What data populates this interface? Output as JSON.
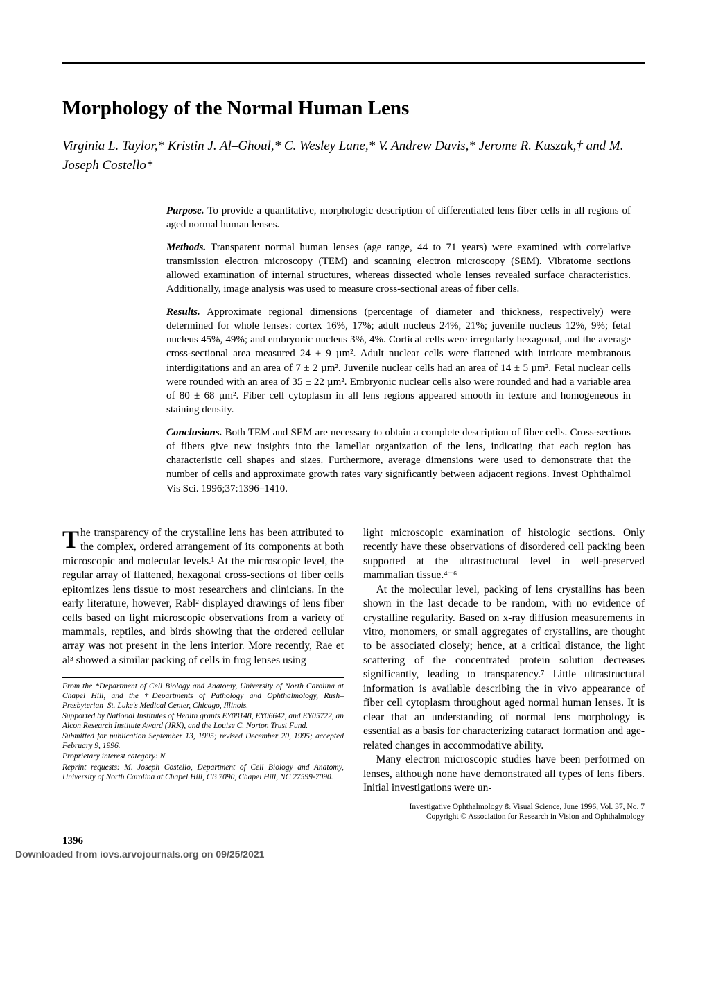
{
  "title": "Morphology of the Normal Human Lens",
  "authors": "Virginia L. Taylor,* Kristin J. Al–Ghoul,* C. Wesley Lane,* V. Andrew Davis,* Jerome R. Kuszak,† and M. Joseph Costello*",
  "abstract": {
    "purpose_label": "Purpose.",
    "purpose": " To provide a quantitative, morphologic description of differentiated lens fiber cells in all regions of aged normal human lenses.",
    "methods_label": "Methods.",
    "methods": " Transparent normal human lenses (age range, 44 to 71 years) were examined with correlative transmission electron microscopy (TEM) and scanning electron microscopy (SEM). Vibratome sections allowed examination of internal structures, whereas dissected whole lenses revealed surface characteristics. Additionally, image analysis was used to measure cross-sectional areas of fiber cells.",
    "results_label": "Results.",
    "results": " Approximate regional dimensions (percentage of diameter and thickness, respectively) were determined for whole lenses: cortex 16%, 17%; adult nucleus 24%, 21%; juvenile nucleus 12%, 9%; fetal nucleus 45%, 49%; and embryonic nucleus 3%, 4%. Cortical cells were irregularly hexagonal, and the average cross-sectional area measured 24 ± 9 µm². Adult nuclear cells were flattened with intricate membranous interdigitations and an area of 7 ± 2 µm². Juvenile nuclear cells had an area of 14 ± 5 µm². Fetal nuclear cells were rounded with an area of 35 ± 22 µm². Embryonic nuclear cells also were rounded and had a variable area of 80 ± 68 µm². Fiber cell cytoplasm in all lens regions appeared smooth in texture and homogeneous in staining density.",
    "conclusions_label": "Conclusions.",
    "conclusions": " Both TEM and SEM are necessary to obtain a complete description of fiber cells. Cross-sections of fibers give new insights into the lamellar organization of the lens, indicating that each region has characteristic cell shapes and sizes. Furthermore, average dimensions were used to demonstrate that the number of cells and approximate growth rates vary significantly between adjacent regions. Invest Ophthalmol Vis Sci. 1996;37:1396–1410."
  },
  "body": {
    "col1_p1_drop": "T",
    "col1_p1": "he transparency of the crystalline lens has been attributed to the complex, ordered arrangement of its components at both microscopic and molecular levels.¹ At the microscopic level, the regular array of flattened, hexagonal cross-sections of fiber cells epitomizes lens tissue to most researchers and clinicians. In the early literature, however, Rabl² displayed drawings of lens fiber cells based on light microscopic observations from a variety of mammals, reptiles, and birds showing that the ordered cellular array was not present in the lens interior. More recently, Rae et al³ showed a similar packing of cells in frog lenses using",
    "col2_p1": "light microscopic examination of histologic sections. Only recently have these observations of disordered cell packing been supported at the ultrastructural level in well-preserved mammalian tissue.⁴⁻⁶",
    "col2_p2": "At the molecular level, packing of lens crystallins has been shown in the last decade to be random, with no evidence of crystalline regularity. Based on x-ray diffusion measurements in vitro, monomers, or small aggregates of crystallins, are thought to be associated closely; hence, at a critical distance, the light scattering of the concentrated protein solution decreases significantly, leading to transparency.⁷ Little ultrastructural information is available describing the in vivo appearance of fiber cell cytoplasm throughout aged normal human lenses. It is clear that an understanding of normal lens morphology is essential as a basis for characterizing cataract formation and age-related changes in accommodative ability.",
    "col2_p3": "Many electron microscopic studies have been performed on lenses, although none have demonstrated all types of lens fibers. Initial investigations were un-"
  },
  "footnotes": {
    "f1": "From the *Department of Cell Biology and Anatomy, University of North Carolina at Chapel Hill, and the †Departments of Pathology and Ophthalmology, Rush–Presbyterian–St. Luke's Medical Center, Chicago, Illinois.",
    "f2": "Supported by National Institutes of Health grants EY08148, EY06642, and EY05722, an Alcon Research Institute Award (JRK), and the Louise C. Norton Trust Fund.",
    "f3": "Submitted for publication September 13, 1995; revised December 20, 1995; accepted February 9, 1996.",
    "f4": "Proprietary interest category: N.",
    "f5": "Reprint requests: M. Joseph Costello, Department of Cell Biology and Anatomy, University of North Carolina at Chapel Hill, CB 7090, Chapel Hill, NC 27599-7090."
  },
  "col2_footnote": {
    "line1": "Investigative Ophthalmology & Visual Science, June 1996, Vol. 37, No. 7",
    "line2": "Copyright © Association for Research in Vision and Ophthalmology"
  },
  "page_number": "1396",
  "download": "Downloaded from iovs.arvojournals.org on 09/25/2021"
}
